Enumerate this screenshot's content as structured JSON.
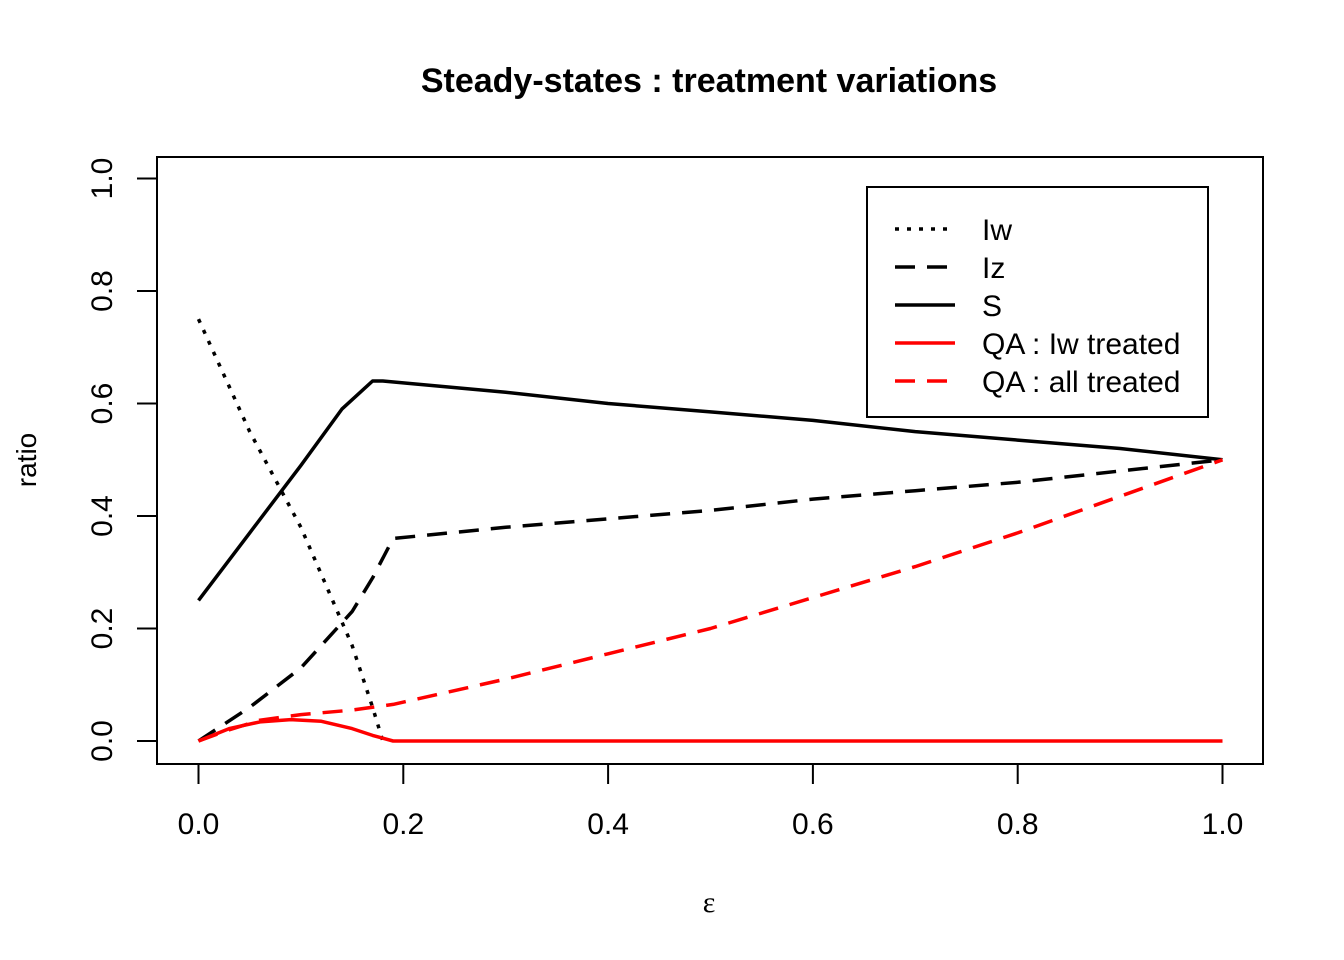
{
  "chart_data": {
    "type": "line",
    "title": "Steady-states : treatment variations",
    "xlabel": "ε",
    "ylabel": "ratio",
    "xlim": [
      0.0,
      1.0
    ],
    "ylim": [
      0.0,
      1.0
    ],
    "xticks": [
      "0.0",
      "0.2",
      "0.4",
      "0.6",
      "0.8",
      "1.0"
    ],
    "yticks": [
      "0.0",
      "0.2",
      "0.4",
      "0.6",
      "0.8",
      "1.0"
    ],
    "grid": false,
    "legend_position": "top-right",
    "series": [
      {
        "name": "Iw",
        "color": "#000000",
        "dash": "dotted",
        "x": [
          0.0,
          0.05,
          0.1,
          0.15,
          0.17,
          0.18
        ],
        "y": [
          0.75,
          0.55,
          0.38,
          0.17,
          0.06,
          0.0
        ]
      },
      {
        "name": "Iz",
        "color": "#000000",
        "dash": "dashed",
        "x": [
          0.0,
          0.05,
          0.1,
          0.15,
          0.17,
          0.19,
          0.3,
          0.4,
          0.5,
          0.6,
          0.7,
          0.8,
          0.9,
          1.0
        ],
        "y": [
          0.0,
          0.06,
          0.13,
          0.23,
          0.29,
          0.36,
          0.38,
          0.395,
          0.41,
          0.43,
          0.445,
          0.46,
          0.48,
          0.5
        ]
      },
      {
        "name": "S",
        "color": "#000000",
        "dash": "solid",
        "x": [
          0.0,
          0.05,
          0.1,
          0.14,
          0.17,
          0.18,
          0.3,
          0.4,
          0.5,
          0.6,
          0.7,
          0.8,
          0.9,
          1.0
        ],
        "y": [
          0.25,
          0.37,
          0.49,
          0.59,
          0.64,
          0.64,
          0.62,
          0.6,
          0.585,
          0.57,
          0.55,
          0.535,
          0.52,
          0.5
        ]
      },
      {
        "name": "QA : Iw treated",
        "color": "#ff0000",
        "dash": "solid",
        "x": [
          0.0,
          0.03,
          0.06,
          0.09,
          0.12,
          0.15,
          0.17,
          0.19,
          0.3,
          0.5,
          0.7,
          0.9,
          1.0
        ],
        "y": [
          0.0,
          0.022,
          0.034,
          0.038,
          0.035,
          0.022,
          0.01,
          0.0,
          0.0,
          0.0,
          0.0,
          0.0,
          0.0
        ]
      },
      {
        "name": "QA : all treated",
        "color": "#ff0000",
        "dash": "dashed",
        "x": [
          0.0,
          0.03,
          0.06,
          0.1,
          0.15,
          0.19,
          0.3,
          0.4,
          0.5,
          0.6,
          0.7,
          0.8,
          0.9,
          1.0
        ],
        "y": [
          0.0,
          0.02,
          0.037,
          0.047,
          0.055,
          0.065,
          0.11,
          0.155,
          0.2,
          0.255,
          0.31,
          0.37,
          0.435,
          0.5
        ]
      }
    ]
  }
}
